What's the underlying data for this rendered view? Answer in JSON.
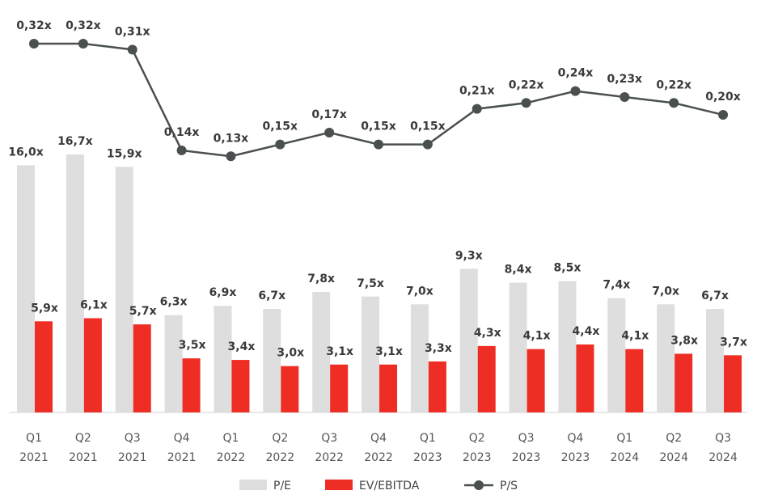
{
  "chart_data": {
    "type": "bar",
    "title": "",
    "xlabel": "",
    "ylabel": "",
    "categories": [
      [
        "Q1",
        "2021"
      ],
      [
        "Q2",
        "2021"
      ],
      [
        "Q3",
        "2021"
      ],
      [
        "Q4",
        "2021"
      ],
      [
        "Q1",
        "2022"
      ],
      [
        "Q2",
        "2022"
      ],
      [
        "Q3",
        "2022"
      ],
      [
        "Q4",
        "2022"
      ],
      [
        "Q1",
        "2023"
      ],
      [
        "Q2",
        "2023"
      ],
      [
        "Q3",
        "2023"
      ],
      [
        "Q4",
        "2023"
      ],
      [
        "Q1",
        "2024"
      ],
      [
        "Q2",
        "2024"
      ],
      [
        "Q3",
        "2024"
      ]
    ],
    "series": [
      {
        "name": "P/E",
        "kind": "bar",
        "color": "#dedede",
        "values": [
          16.0,
          16.7,
          15.9,
          6.3,
          6.9,
          6.7,
          7.8,
          7.5,
          7.0,
          9.3,
          8.4,
          8.5,
          7.4,
          7.0,
          6.7
        ],
        "labels": [
          "16,0x",
          "16,7x",
          "15,9x",
          "6,3x",
          "6,9x",
          "6,7x",
          "7,8x",
          "7,5x",
          "7,0x",
          "9,3x",
          "8,4x",
          "8,5x",
          "7,4x",
          "7,0x",
          "6,7x"
        ]
      },
      {
        "name": "EV/EBITDA",
        "kind": "bar",
        "color": "#ee2e24",
        "values": [
          5.9,
          6.1,
          5.7,
          3.5,
          3.4,
          3.0,
          3.1,
          3.1,
          3.3,
          4.3,
          4.1,
          4.4,
          4.1,
          3.8,
          3.7
        ],
        "labels": [
          "5,9x",
          "6,1x",
          "5,7x",
          "3,5x",
          "3,4x",
          "3,0x",
          "3,1x",
          "3,1x",
          "3,3x",
          "4,3x",
          "4,1x",
          "4,4x",
          "4,1x",
          "3,8x",
          "3,7x"
        ]
      },
      {
        "name": "P/S",
        "kind": "line",
        "color": "#4a4f4f",
        "values": [
          0.32,
          0.32,
          0.31,
          0.14,
          0.13,
          0.15,
          0.17,
          0.15,
          0.15,
          0.21,
          0.22,
          0.24,
          0.23,
          0.22,
          0.2
        ],
        "labels": [
          "0,32x",
          "0,32x",
          "0,31x",
          "0,14x",
          "0,13x",
          "0,15x",
          "0,17x",
          "0,15x",
          "0,15x",
          "0,21x",
          "0,22x",
          "0,24x",
          "0,23x",
          "0,22x",
          "0,20x"
        ]
      }
    ],
    "legend_position": "bottom",
    "grid": false
  }
}
